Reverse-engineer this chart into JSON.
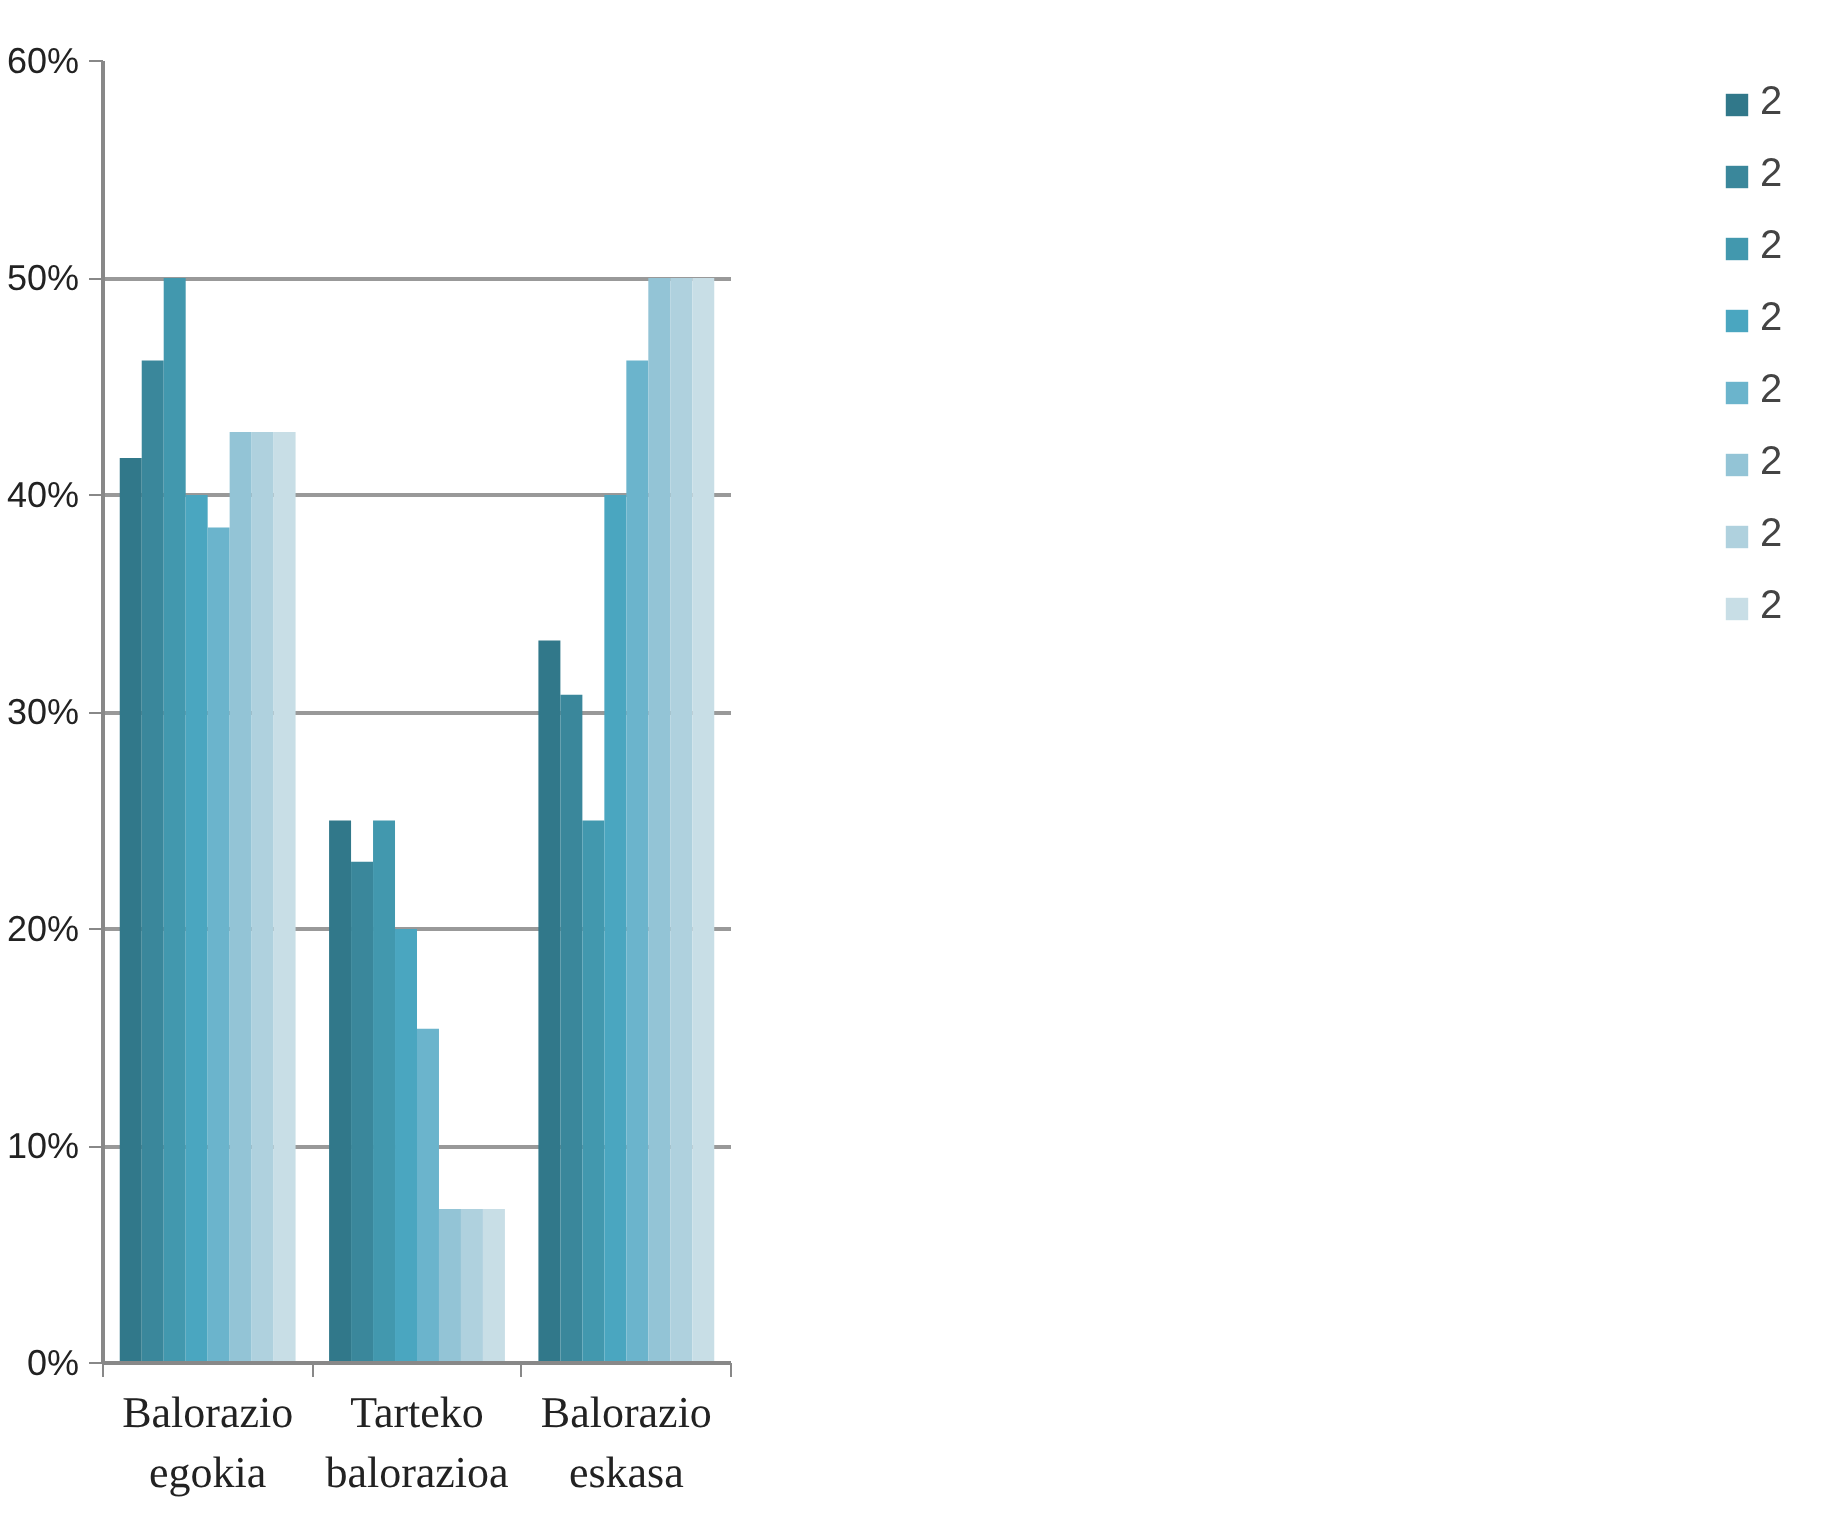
{
  "chart_data": {
    "type": "bar",
    "categories": [
      "Balorazio\negokia",
      "Tarteko\nbalorazioa",
      "Balorazio\neskasa"
    ],
    "series": [
      {
        "name": "2",
        "color": "#31788a",
        "values": [
          41.7,
          25,
          33.3
        ]
      },
      {
        "name": "2",
        "color": "#3a879b",
        "values": [
          46.2,
          23.1,
          30.8
        ]
      },
      {
        "name": "2",
        "color": "#4298ae",
        "values": [
          50,
          25,
          25
        ]
      },
      {
        "name": "2",
        "color": "#4aa6c0",
        "values": [
          40,
          20,
          40
        ]
      },
      {
        "name": "2",
        "color": "#6bb4cc",
        "values": [
          38.5,
          15.4,
          46.2
        ]
      },
      {
        "name": "2",
        "color": "#93c4d6",
        "values": [
          42.9,
          7.1,
          50
        ]
      },
      {
        "name": "2",
        "color": "#afd1de",
        "values": [
          42.9,
          7.1,
          50
        ]
      },
      {
        "name": "2",
        "color": "#c8dee6",
        "values": [
          42.9,
          7.1,
          50
        ]
      }
    ],
    "ylim": [
      0,
      60
    ],
    "yticks": [
      {
        "value": 0,
        "label": "0%"
      },
      {
        "value": 10,
        "label": "10%"
      },
      {
        "value": 20,
        "label": "20%"
      },
      {
        "value": 30,
        "label": "30%"
      },
      {
        "value": 40,
        "label": "40%"
      },
      {
        "value": 50,
        "label": "50%"
      },
      {
        "value": 60,
        "label": "60%"
      }
    ],
    "grid": "y",
    "legend": "right"
  }
}
